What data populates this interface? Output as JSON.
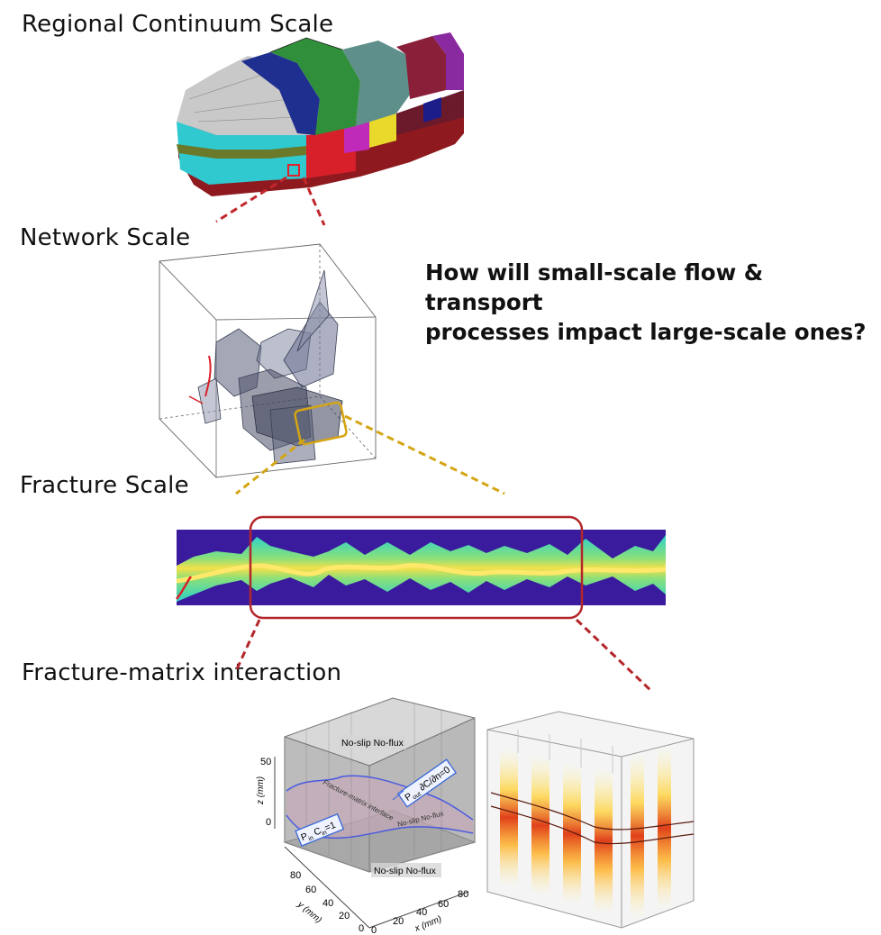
{
  "labels": {
    "regional": "Regional Continuum Scale",
    "network": "Network Scale",
    "fracture": "Fracture Scale",
    "fracture_matrix": "Fracture-matrix interaction"
  },
  "question": {
    "line1": "How will small-scale flow & transport",
    "line2": "processes impact large-scale ones?"
  },
  "model_plot": {
    "top_bc": "No-slip  No-flux",
    "bottom_bc": "No-slip  No-flux",
    "right_bc": "P",
    "right_bc_sub": "out",
    "right_bc_tail": " ∂C/∂n=0",
    "left_bc": "P",
    "left_bc_sub": "in",
    "left_bc_tail": " C",
    "left_bc_sub2": "in",
    "left_bc_val": "=1",
    "interface": "Fracture-matrix interface",
    "mid_bc": "No-slip  No-flux",
    "z_axis_label": "z (mm)",
    "y_axis_label": "y (mm)",
    "x_axis_label": "x (mm)",
    "z_ticks": [
      "50",
      "0"
    ],
    "y_ticks": [
      "80",
      "60",
      "40",
      "20",
      "0"
    ],
    "x_ticks": [
      "0",
      "20",
      "40",
      "60",
      "80"
    ]
  },
  "colors": {
    "connector_red": "#c0282d",
    "connector_gold": "#d4a514",
    "box_red": "#b3262b",
    "fracture_bg": "#3a1b9e"
  }
}
